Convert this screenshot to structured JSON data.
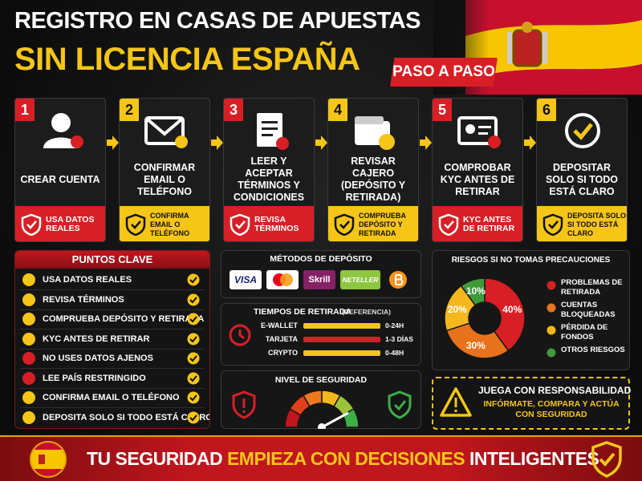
{
  "header": {
    "title_line1": "REGISTRO EN CASAS DE APUESTAS",
    "title_line2": "SIN LICENCIA ESPAÑA",
    "badge": "PASO A PASO"
  },
  "steps": [
    {
      "number": 1,
      "label": "CREAR CUENTA",
      "note": "USA DATOS REALES"
    },
    {
      "number": 2,
      "label": "CONFIRMAR EMAIL O TELÉFONO",
      "note": "CONFIRMA EMAIL O TELÉFONO"
    },
    {
      "number": 3,
      "label": "LEER Y ACEPTAR TÉRMINOS Y CONDICIONES",
      "note": "REVISA TÉRMINOS"
    },
    {
      "number": 4,
      "label": "REVISAR CAJERO (DEPÓSITO Y RETIRADA)",
      "note": "COMPRUEBA DEPÓSITO Y RETIRADA"
    },
    {
      "number": 5,
      "label": "COMPROBAR KYC ANTES DE RETIRAR",
      "note": "KYC ANTES DE RETIRAR"
    },
    {
      "number": 6,
      "label": "DEPOSITAR SOLO SI TODO ESTÁ CLARO",
      "note": "DEPOSITA SOLO SI TODO ESTÁ CLARO"
    }
  ],
  "key_points": {
    "title": "PUNTOS CLAVE",
    "items": [
      "USA DATOS REALES",
      "REVISA TÉRMINOS",
      "COMPRUEBA DEPÓSITO Y RETIRADA",
      "KYC ANTES DE RETIRAR",
      "NO USES DATOS AJENOS",
      "LEE PAÍS RESTRINGIDO",
      "CONFIRMA EMAIL O TELÉFONO",
      "DEPOSITA SOLO SI TODO ESTÁ CLARO"
    ]
  },
  "deposit_methods": {
    "title": "MÉTODOS DE DEPÓSITO",
    "logos": [
      "VISA",
      "Skrill",
      "NETELLER"
    ]
  },
  "withdrawal_times": {
    "title": "TIEMPOS DE RETIRADA",
    "subtitle": "(REFERENCIA)",
    "rows": [
      {
        "method": "E-WALLET",
        "time": "0-24H",
        "color": "#f5c518"
      },
      {
        "method": "TARJETA",
        "time": "1-3 DÍAS",
        "color": "#d81f26"
      },
      {
        "method": "CRYPTO",
        "time": "0-48H",
        "color": "#f5c518"
      }
    ]
  },
  "security_level": {
    "title": "NIVEL DE SEGURIDAD"
  },
  "risks": {
    "title": "RIESGOS SI NO TOMAS PRECAUCIONES",
    "type": "pie",
    "categories": [
      "PROBLEMAS DE RETIRADA",
      "CUENTAS BLOQUEADAS",
      "PÉRDIDA DE FONDOS",
      "OTROS RIESGOS"
    ],
    "values": [
      40,
      30,
      20,
      10
    ],
    "value_labels": [
      "40%",
      "30%",
      "20%",
      "10%"
    ],
    "colors": [
      "#d81f26",
      "#e8731c",
      "#f5b81c",
      "#3f9a3a"
    ]
  },
  "responsible": {
    "title": "JUEGA CON RESPONSABILIDAD",
    "text": "INFÓRMATE, COMPARA Y ACTÚA CON SEGURIDAD"
  },
  "footer": {
    "part1": "TU SEGURIDAD",
    "part2": "EMPIEZA CON DECISIONES",
    "part3": "INTELIGENTES"
  }
}
